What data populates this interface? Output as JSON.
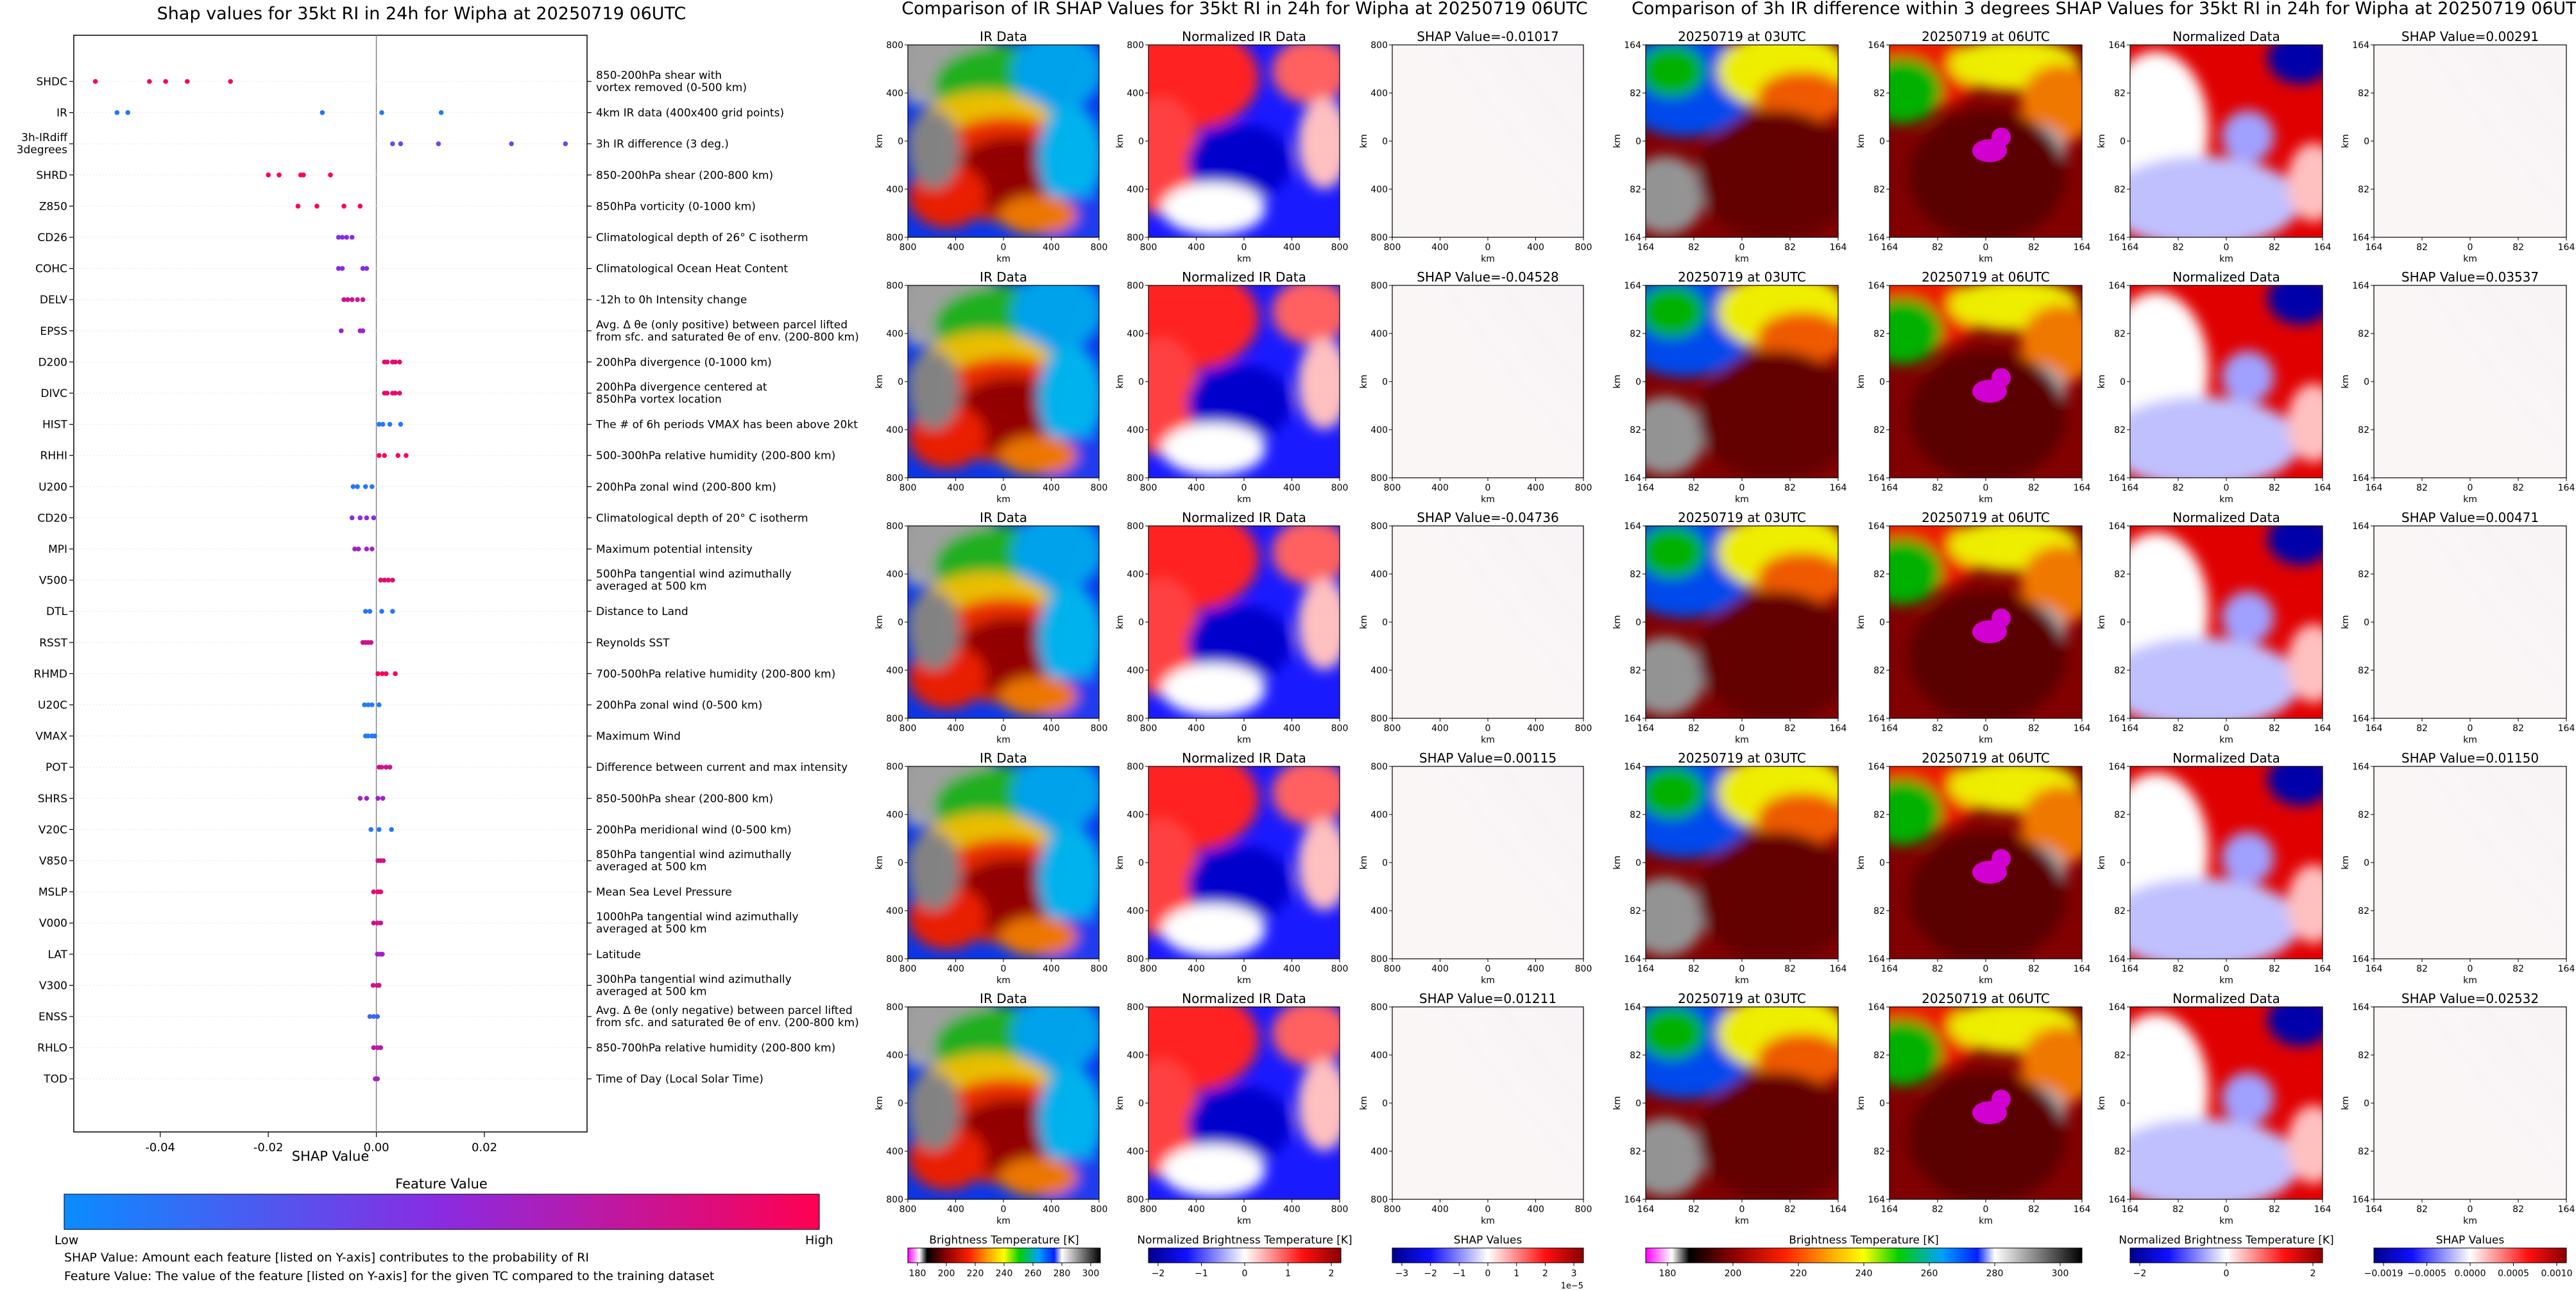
{
  "colors": {
    "low": "#0a8cff",
    "mid": "#8a2be2",
    "high": "#ff0052"
  },
  "shap_panel": {
    "title": "Shap values for 35kt RI in 24h for Wipha at 20250719 06UTC",
    "xlabel": "SHAP Value",
    "xticks": [
      "-0.04",
      "-0.02",
      "0.00",
      "0.02"
    ],
    "colorbar_title": "Feature Value",
    "colorbar_low": "Low",
    "colorbar_high": "High",
    "note1": "SHAP Value: Amount each feature [listed on Y-axis] contributes to the probability of RI",
    "note2": "Feature Value: The value of the feature [listed on Y-axis] for the given TC compared to the training dataset"
  },
  "chart_data": {
    "type": "scatter",
    "title": "Shap values for 35kt RI in 24h for Wipha at 20250719 06UTC",
    "xlabel": "SHAP Value",
    "xlim": [
      -0.056,
      0.039
    ],
    "features": [
      {
        "code": "SHDC",
        "desc": [
          "850-200hPa shear with",
          "vortex removed (0-500 km)"
        ],
        "points": [
          [
            -0.052,
            1
          ],
          [
            -0.042,
            1
          ],
          [
            -0.039,
            1
          ],
          [
            -0.035,
            1
          ],
          [
            -0.027,
            1
          ]
        ]
      },
      {
        "code": "IR",
        "desc": [
          "4km IR data (400x400 grid points)"
        ],
        "points": [
          [
            -0.048,
            0.1
          ],
          [
            -0.046,
            0.1
          ],
          [
            -0.01,
            0.1
          ],
          [
            0.001,
            0.1
          ],
          [
            0.012,
            0.1
          ]
        ]
      },
      {
        "code": "3h-IRdiff 3degrees",
        "desc": [
          "3h IR difference (3 deg.)"
        ],
        "points": [
          [
            0.003,
            0.3
          ],
          [
            0.0045,
            0.3
          ],
          [
            0.0115,
            0.3
          ],
          [
            0.025,
            0.3
          ],
          [
            0.035,
            0.3
          ]
        ]
      },
      {
        "code": "SHRD",
        "desc": [
          "850-200hPa shear (200-800 km)"
        ],
        "points": [
          [
            -0.02,
            1
          ],
          [
            -0.018,
            1
          ],
          [
            -0.014,
            1
          ],
          [
            -0.0135,
            1
          ],
          [
            -0.0085,
            1
          ]
        ]
      },
      {
        "code": "Z850",
        "desc": [
          "850hPa vorticity (0-1000 km)"
        ],
        "points": [
          [
            -0.0145,
            1
          ],
          [
            -0.011,
            1
          ],
          [
            -0.006,
            1
          ],
          [
            -0.003,
            1
          ]
        ]
      },
      {
        "code": "CD26",
        "desc": [
          "Climatological depth of 26° C isotherm"
        ],
        "points": [
          [
            -0.007,
            0.5
          ],
          [
            -0.0063,
            0.5
          ],
          [
            -0.0055,
            0.5
          ],
          [
            -0.0045,
            0.5
          ]
        ]
      },
      {
        "code": "COHC",
        "desc": [
          "Climatological Ocean Heat Content"
        ],
        "points": [
          [
            -0.007,
            0.5
          ],
          [
            -0.0063,
            0.5
          ],
          [
            -0.0025,
            0.5
          ],
          [
            -0.0018,
            0.5
          ]
        ]
      },
      {
        "code": "DELV",
        "desc": [
          "-12h to 0h Intensity change"
        ],
        "points": [
          [
            -0.006,
            0.8
          ],
          [
            -0.0053,
            0.8
          ],
          [
            -0.0045,
            0.8
          ],
          [
            -0.0035,
            0.8
          ],
          [
            -0.0025,
            0.8
          ]
        ]
      },
      {
        "code": "EPSS",
        "desc": [
          "Avg. Δ θe (only positive) between parcel lifted",
          "from sfc. and saturated θe of env. (200-800 km)"
        ],
        "points": [
          [
            -0.0065,
            0.6
          ],
          [
            -0.003,
            0.6
          ],
          [
            -0.0025,
            0.6
          ]
        ]
      },
      {
        "code": "D200",
        "desc": [
          "200hPa divergence (0-1000 km)"
        ],
        "points": [
          [
            0.0015,
            0.9
          ],
          [
            0.002,
            0.9
          ],
          [
            0.003,
            0.9
          ],
          [
            0.0035,
            0.9
          ],
          [
            0.0043,
            0.9
          ]
        ]
      },
      {
        "code": "DIVC",
        "desc": [
          "200hPa divergence centered at",
          "850hPa vortex location"
        ],
        "points": [
          [
            0.0015,
            0.9
          ],
          [
            0.002,
            0.9
          ],
          [
            0.003,
            0.9
          ],
          [
            0.0035,
            0.9
          ],
          [
            0.0043,
            0.9
          ]
        ]
      },
      {
        "code": "HIST",
        "desc": [
          "The # of 6h periods VMAX has been above 20kt"
        ],
        "points": [
          [
            0.0005,
            0.1
          ],
          [
            0.0012,
            0.1
          ],
          [
            0.0025,
            0.1
          ],
          [
            0.0045,
            0.1
          ]
        ]
      },
      {
        "code": "RHHI",
        "desc": [
          "500-300hPa relative humidity (200-800 km)"
        ],
        "points": [
          [
            0.0005,
            1
          ],
          [
            0.0015,
            1
          ],
          [
            0.004,
            1
          ],
          [
            0.0055,
            1
          ]
        ]
      },
      {
        "code": "U200",
        "desc": [
          "200hPa zonal wind (200-800 km)"
        ],
        "points": [
          [
            -0.0043,
            0.1
          ],
          [
            -0.0035,
            0.1
          ],
          [
            -0.002,
            0.1
          ],
          [
            -0.0008,
            0.1
          ]
        ]
      },
      {
        "code": "CD20",
        "desc": [
          "Climatological depth of 20° C isotherm"
        ],
        "points": [
          [
            -0.0045,
            0.5
          ],
          [
            -0.003,
            0.5
          ],
          [
            -0.0018,
            0.5
          ],
          [
            -0.0005,
            0.5
          ]
        ]
      },
      {
        "code": "MPI",
        "desc": [
          "Maximum potential intensity"
        ],
        "points": [
          [
            -0.004,
            0.6
          ],
          [
            -0.0033,
            0.6
          ],
          [
            -0.0018,
            0.6
          ],
          [
            -0.0008,
            0.6
          ]
        ]
      },
      {
        "code": "V500",
        "desc": [
          "500hPa tangential wind azimuthally",
          "averaged at 500 km"
        ],
        "points": [
          [
            0.0008,
            0.9
          ],
          [
            0.0015,
            0.9
          ],
          [
            0.0022,
            0.9
          ],
          [
            0.003,
            0.9
          ]
        ]
      },
      {
        "code": "DTL",
        "desc": [
          "Distance to Land"
        ],
        "points": [
          [
            -0.002,
            0.1
          ],
          [
            -0.0012,
            0.1
          ],
          [
            0.001,
            0.1
          ],
          [
            0.003,
            0.1
          ]
        ]
      },
      {
        "code": "RSST",
        "desc": [
          "Reynolds SST"
        ],
        "points": [
          [
            -0.0025,
            0.8
          ],
          [
            -0.002,
            0.8
          ],
          [
            -0.0015,
            0.8
          ],
          [
            -0.001,
            0.8
          ]
        ]
      },
      {
        "code": "RHMD",
        "desc": [
          "700-500hPa relative humidity (200-800 km)"
        ],
        "points": [
          [
            0.0003,
            1
          ],
          [
            0.0011,
            1
          ],
          [
            0.0018,
            1
          ],
          [
            0.0035,
            1
          ]
        ]
      },
      {
        "code": "U20C",
        "desc": [
          "200hPa zonal wind (0-500 km)"
        ],
        "points": [
          [
            -0.0022,
            0.1
          ],
          [
            -0.0015,
            0.1
          ],
          [
            -0.0008,
            0.1
          ],
          [
            0.0005,
            0.1
          ]
        ]
      },
      {
        "code": "VMAX",
        "desc": [
          "Maximum Wind"
        ],
        "points": [
          [
            -0.002,
            0.1
          ],
          [
            -0.0015,
            0.1
          ],
          [
            -0.0008,
            0.1
          ],
          [
            -0.0003,
            0.1
          ]
        ]
      },
      {
        "code": "POT",
        "desc": [
          "Difference between current and max intensity"
        ],
        "points": [
          [
            0.0005,
            0.8
          ],
          [
            0.001,
            0.8
          ],
          [
            0.0018,
            0.8
          ],
          [
            0.0025,
            0.8
          ]
        ]
      },
      {
        "code": "SHRS",
        "desc": [
          "850-500hPa shear (200-800 km)"
        ],
        "points": [
          [
            -0.003,
            0.6
          ],
          [
            -0.0018,
            0.6
          ],
          [
            0.0003,
            0.6
          ],
          [
            0.0012,
            0.6
          ]
        ]
      },
      {
        "code": "V20C",
        "desc": [
          "200hPa meridional wind (0-500 km)"
        ],
        "points": [
          [
            -0.001,
            0.1
          ],
          [
            0.0005,
            0.1
          ],
          [
            0.0028,
            0.1
          ]
        ]
      },
      {
        "code": "V850",
        "desc": [
          "850hPa tangential wind azimuthally",
          "averaged at 500 km"
        ],
        "points": [
          [
            0.0003,
            0.8
          ],
          [
            0.0008,
            0.8
          ],
          [
            0.0013,
            0.8
          ]
        ]
      },
      {
        "code": "MSLP",
        "desc": [
          "Mean Sea Level Pressure"
        ],
        "points": [
          [
            -0.0005,
            0.9
          ],
          [
            0.0003,
            0.9
          ],
          [
            0.0008,
            0.9
          ]
        ]
      },
      {
        "code": "V000",
        "desc": [
          "1000hPa tangential wind azimuthally",
          "averaged at 500 km"
        ],
        "points": [
          [
            -0.0005,
            0.8
          ],
          [
            0.0002,
            0.8
          ],
          [
            0.0008,
            0.8
          ]
        ]
      },
      {
        "code": "LAT",
        "desc": [
          "Latitude"
        ],
        "points": [
          [
            0.0002,
            0.6
          ],
          [
            0.0007,
            0.6
          ],
          [
            0.0011,
            0.6
          ]
        ]
      },
      {
        "code": "V300",
        "desc": [
          "300hPa tangential wind azimuthally",
          "averaged at 500 km"
        ],
        "points": [
          [
            -0.0006,
            0.8
          ],
          [
            0.0001,
            0.8
          ],
          [
            0.0005,
            0.8
          ]
        ]
      },
      {
        "code": "ENSS",
        "desc": [
          "Avg. Δ θe (only negative) between parcel lifted",
          "from sfc. and saturated θe of env. (200-800 km)"
        ],
        "points": [
          [
            -0.0012,
            0.2
          ],
          [
            -0.0005,
            0.2
          ],
          [
            0.0002,
            0.2
          ]
        ]
      },
      {
        "code": "RHLO",
        "desc": [
          "850-700hPa relative humidity (200-800 km)"
        ],
        "points": [
          [
            -0.0005,
            0.7
          ],
          [
            0.0002,
            0.7
          ],
          [
            0.0008,
            0.7
          ]
        ]
      },
      {
        "code": "TOD",
        "desc": [
          "Time of Day (Local Solar Time)"
        ],
        "points": [
          [
            -0.0002,
            0.6
          ],
          [
            0.0002,
            0.6
          ]
        ]
      }
    ]
  },
  "ir_section": {
    "title": "Comparison of IR SHAP Values for 35kt RI in 24h for Wipha at 20250719 06UTC",
    "col_titles": [
      "IR Data",
      "Normalized IR Data"
    ],
    "shap_titles": [
      "SHAP Value=-0.01017",
      "SHAP Value=-0.04528",
      "SHAP Value=-0.04736",
      "SHAP Value=0.00115",
      "SHAP Value=0.01211"
    ],
    "yticks": [
      "800",
      "400",
      "0",
      "400",
      "800"
    ],
    "xticks": [
      "800",
      "400",
      "0",
      "400",
      "800"
    ],
    "axis_label": "km",
    "cbar_bt_label": "Brightness Temperature [K]",
    "cbar_bt_ticks": [
      "180",
      "200",
      "220",
      "240",
      "260",
      "280",
      "300"
    ],
    "cbar_norm_label": "Normalized Brightness Temperature [K]",
    "cbar_norm_ticks": [
      "−2",
      "−1",
      "0",
      "1",
      "2"
    ],
    "cbar_shap_label": "SHAP Values",
    "cbar_shap_ticks": [
      "−3",
      "−2",
      "−1",
      "0",
      "1",
      "2",
      "3"
    ],
    "cbar_shap_exp": "1e−5"
  },
  "diff_section": {
    "title": "Comparison of 3h IR difference within 3 degrees SHAP Values for 35kt RI in 24h for Wipha at 20250719 06UTC",
    "col_titles": [
      "20250719 at 03UTC",
      "20250719 at 06UTC",
      "Normalized Data"
    ],
    "shap_titles": [
      "SHAP Value=0.00291",
      "SHAP Value=0.03537",
      "SHAP Value=0.00471",
      "SHAP Value=0.01150",
      "SHAP Value=0.02532"
    ],
    "yticks": [
      "164",
      "82",
      "0",
      "82",
      "164"
    ],
    "xticks": [
      "164",
      "82",
      "0",
      "82",
      "164"
    ],
    "axis_label": "km",
    "cbar_bt_label": "Brightness Temperature [K]",
    "cbar_bt_ticks": [
      "180",
      "200",
      "220",
      "240",
      "260",
      "280",
      "300"
    ],
    "cbar_norm_label": "Normalized Brightness Temperature [K]",
    "cbar_norm_ticks": [
      "−2",
      "0",
      "2"
    ],
    "cbar_shap_label": "SHAP Values",
    "cbar_shap_ticks": [
      "−0.0019",
      "−0.0005",
      "0.0000",
      "0.0005",
      "0.0010"
    ]
  }
}
